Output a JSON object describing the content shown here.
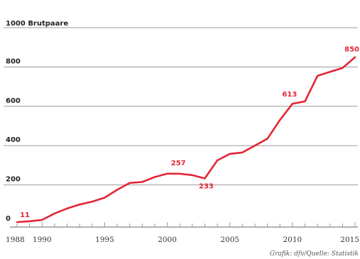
{
  "chart_data": {
    "type": "line",
    "ylabel": "1000 Brutpaare",
    "source": "Grafik: dfv/Quelle: Statistik",
    "xlim": [
      1988,
      2015
    ],
    "ylim": [
      0,
      1000
    ],
    "x_ticks": [
      1988,
      1990,
      1995,
      2000,
      2005,
      2010,
      2015
    ],
    "y_ticks": [
      0,
      200,
      400,
      600,
      800,
      1000
    ],
    "grid": true,
    "series": [
      {
        "color": "#e32636",
        "x": [
          1988,
          1989,
          1990,
          1991,
          1992,
          1993,
          1994,
          1995,
          1996,
          1997,
          1998,
          1999,
          2000,
          2001,
          2002,
          2003,
          2004,
          2005,
          2006,
          2007,
          2008,
          2009,
          2010,
          2011,
          2012,
          2013,
          2014,
          2015
        ],
        "y": [
          11,
          15,
          22,
          55,
          80,
          100,
          115,
          135,
          175,
          210,
          215,
          240,
          257,
          257,
          250,
          233,
          325,
          358,
          365,
          400,
          435,
          530,
          613,
          625,
          755,
          775,
          795,
          850
        ]
      }
    ],
    "data_labels": [
      {
        "x": 1988,
        "y": 11,
        "text": "11"
      },
      {
        "x": 2001,
        "y": 257,
        "text": "257"
      },
      {
        "x": 2003,
        "y": 233,
        "text": "233"
      },
      {
        "x": 2010,
        "y": 613,
        "text": "613"
      },
      {
        "x": 2015,
        "y": 850,
        "text": "850"
      }
    ]
  }
}
